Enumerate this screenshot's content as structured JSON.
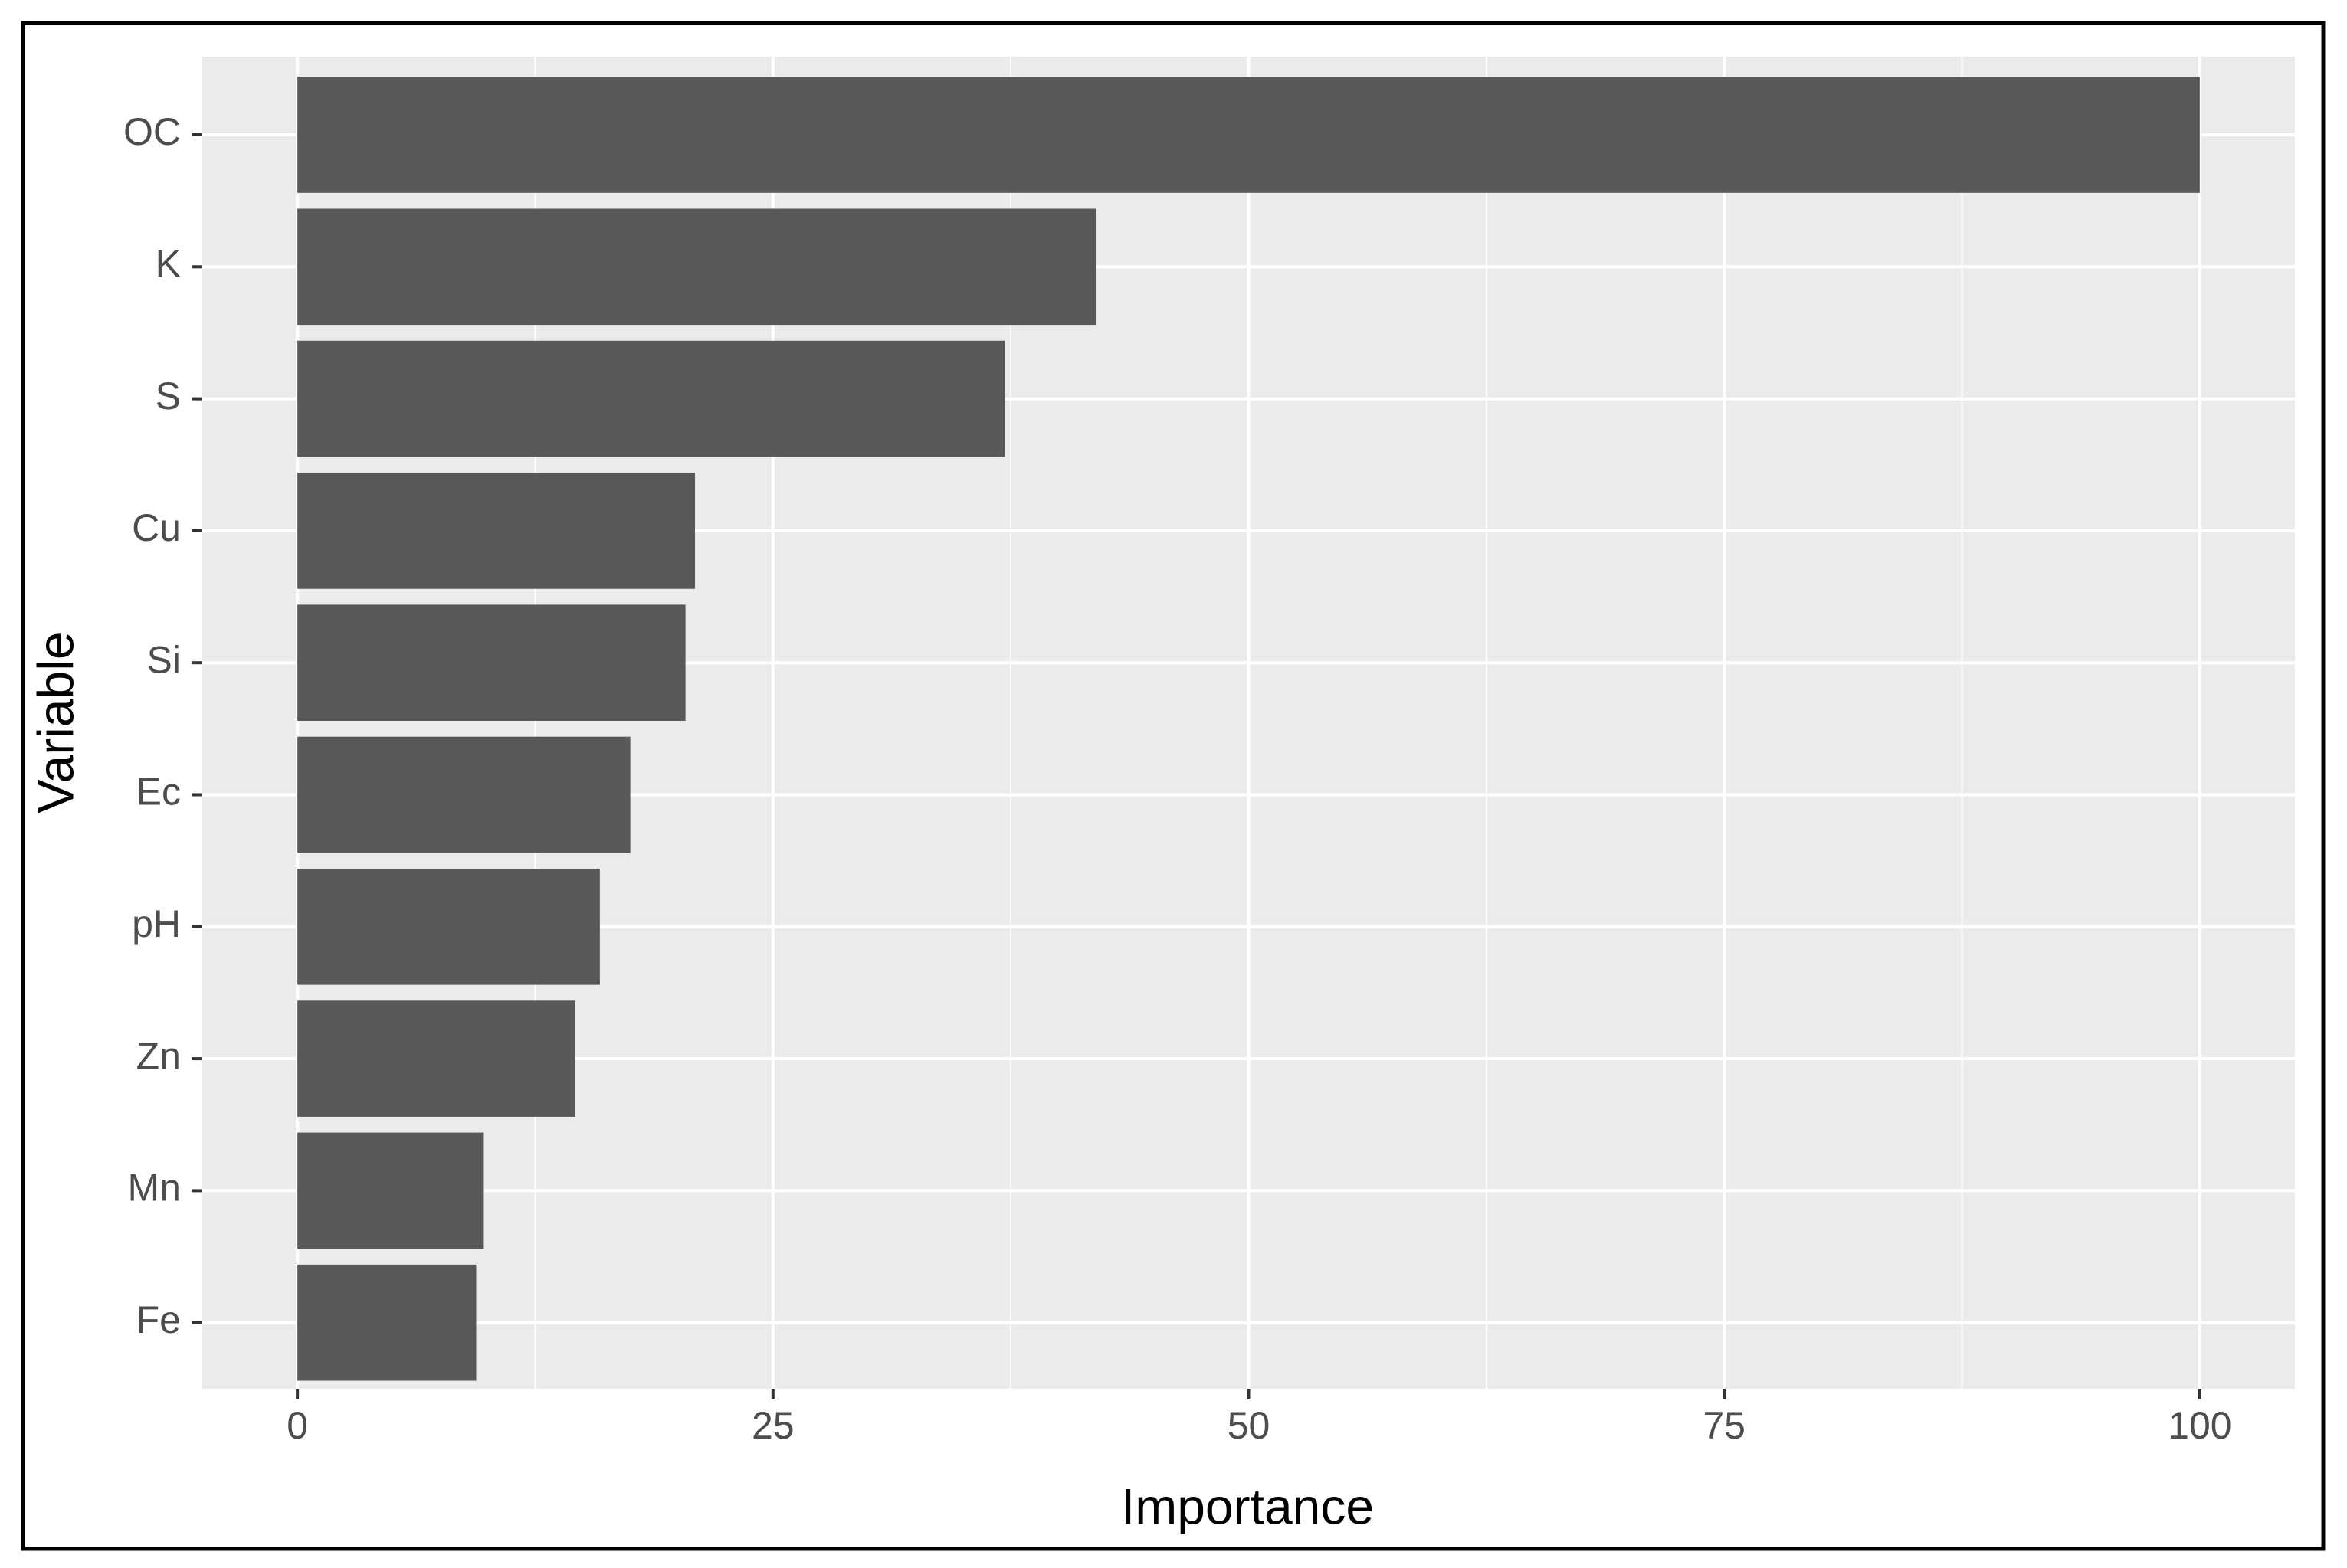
{
  "chart_data": {
    "type": "bar",
    "orientation": "horizontal",
    "x_label": "Importance",
    "y_label": "Variable",
    "categories": [
      "OC",
      "K",
      "S",
      "Cu",
      "Si",
      "Ec",
      "pH",
      "Zn",
      "Mn",
      "Fe"
    ],
    "values": [
      100,
      42,
      37.2,
      20.9,
      20.4,
      17.5,
      15.9,
      14.6,
      9.8,
      9.4
    ],
    "color": "#595959",
    "xlim": [
      -5,
      105
    ],
    "xticks": [
      0,
      25,
      50,
      75,
      100
    ],
    "grid": true
  }
}
